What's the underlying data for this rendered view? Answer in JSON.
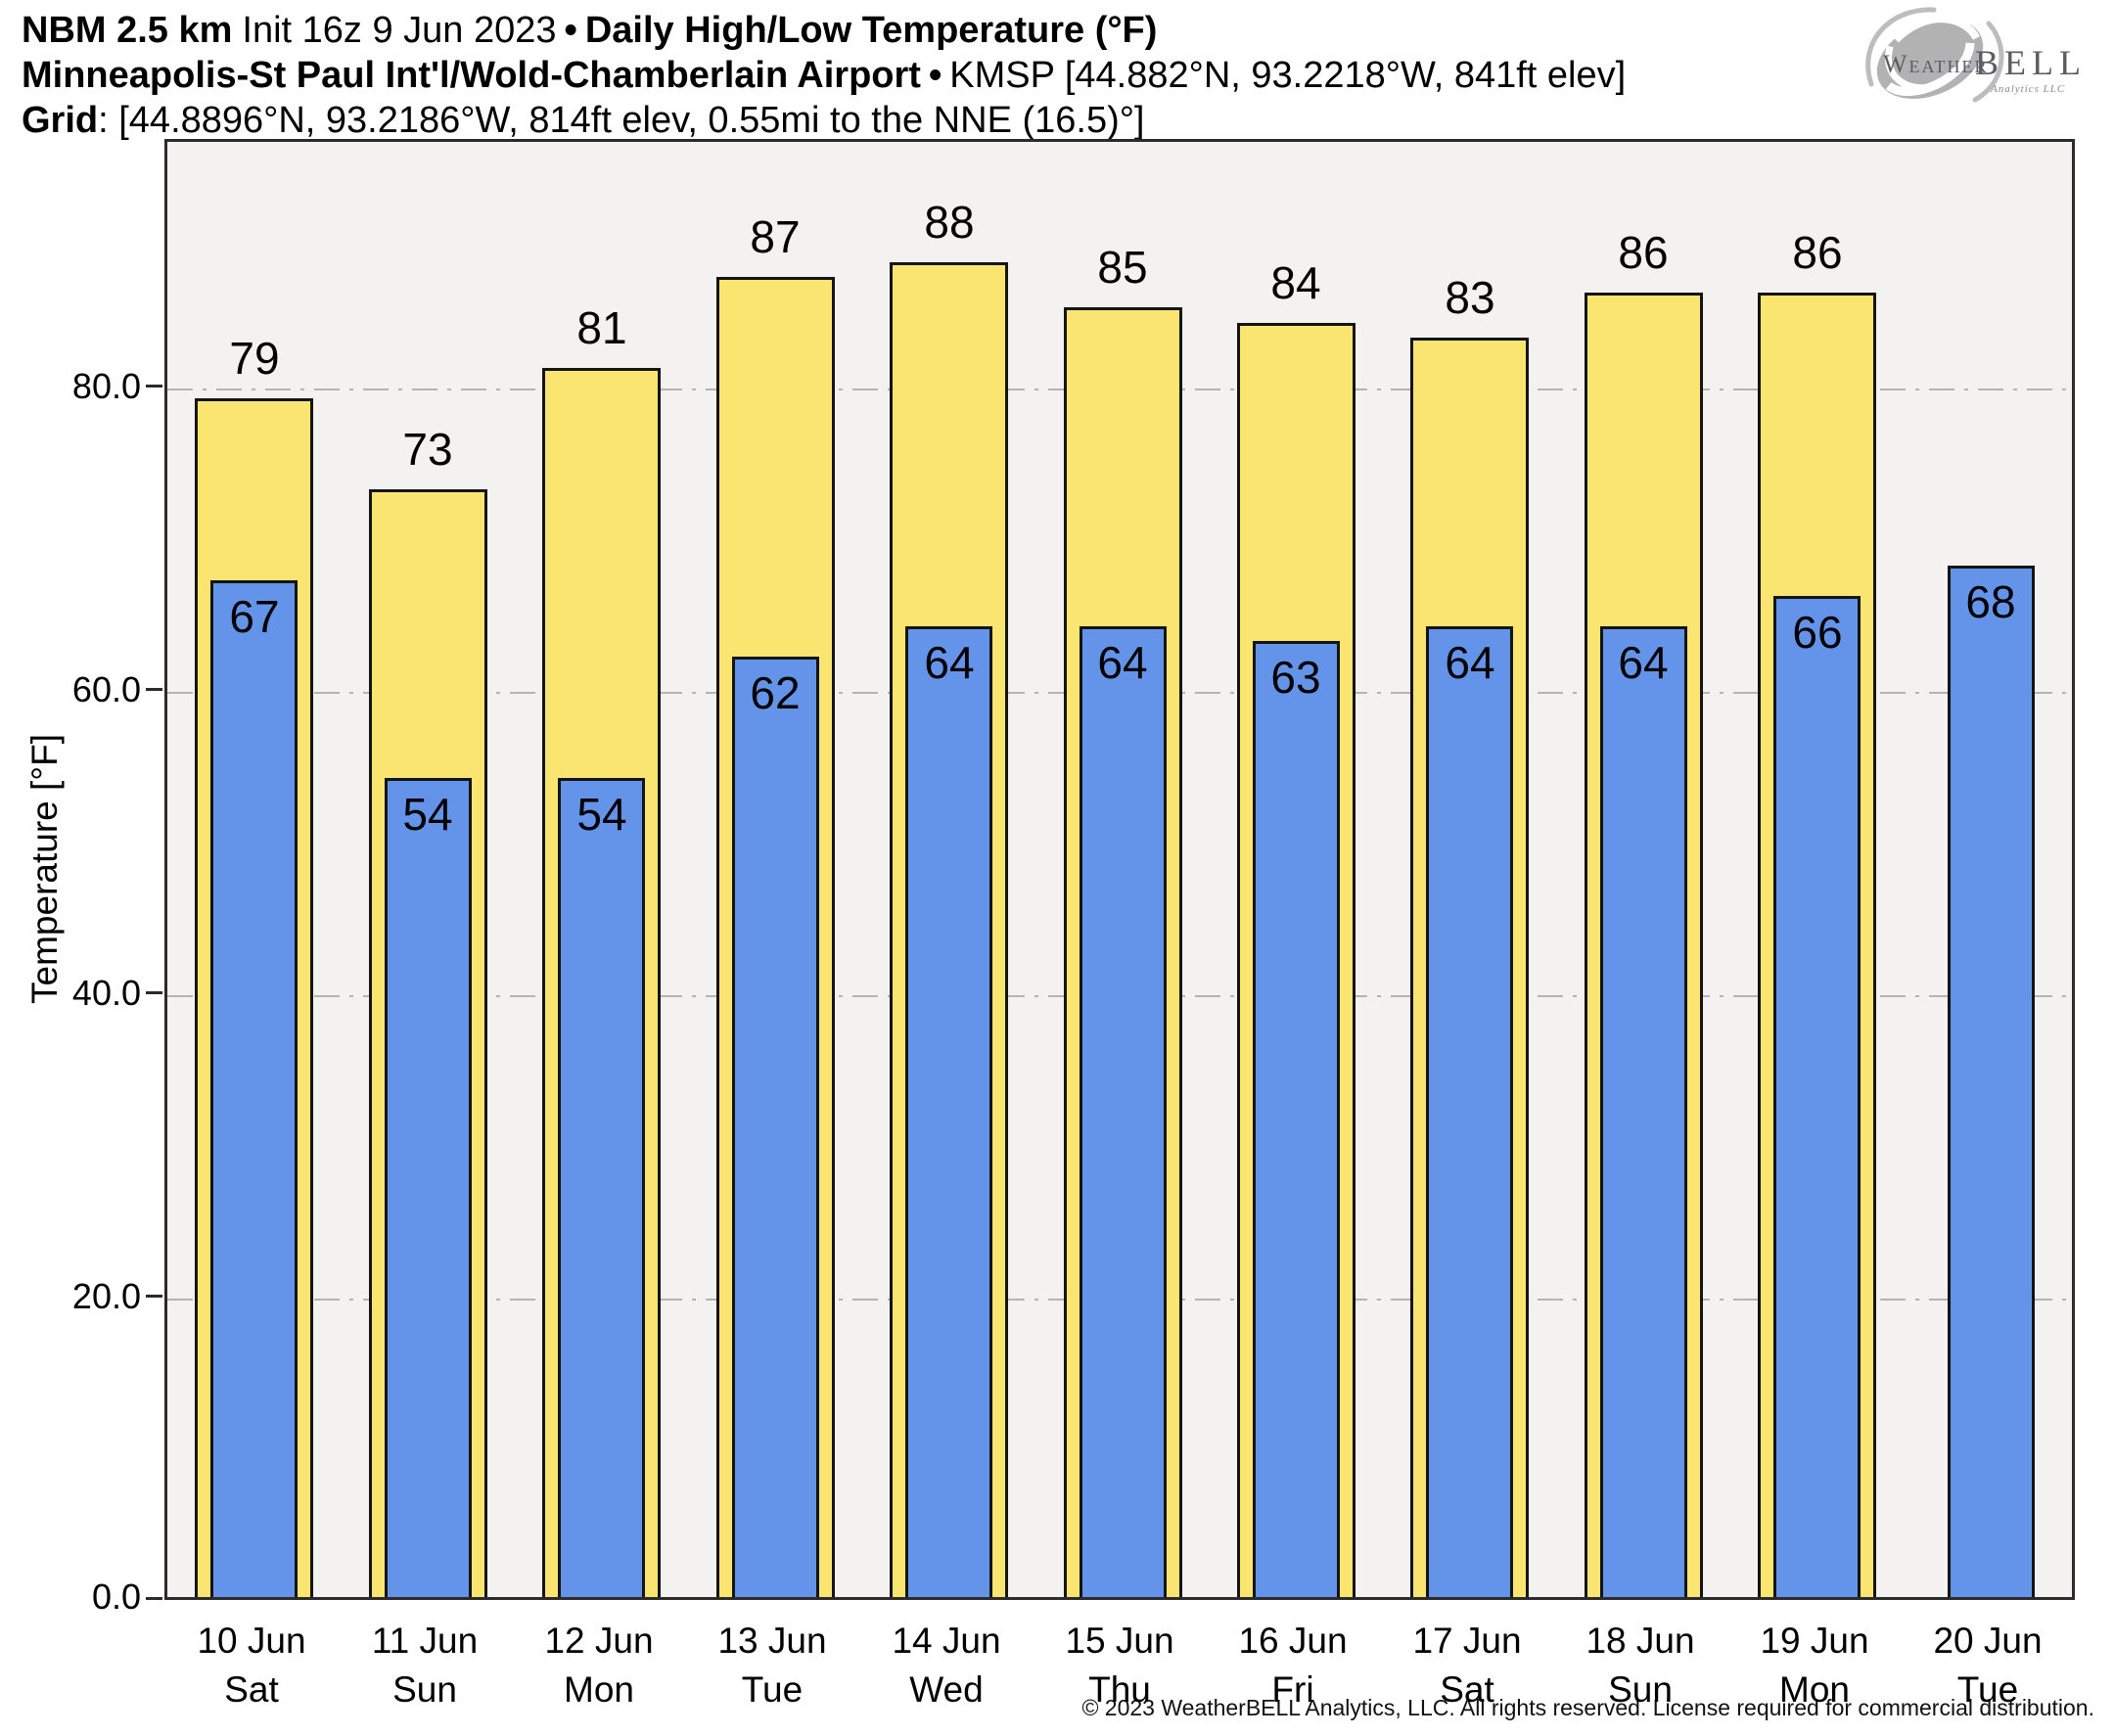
{
  "header": {
    "line1": {
      "model": "NBM 2.5 km",
      "init": "Init 16z 9 Jun 2023",
      "separator": "•",
      "product": "Daily High/Low Temperature (°F)"
    },
    "line2": {
      "station": "Minneapolis-St Paul Int'l/Wold-Chamberlain Airport",
      "separator": "•",
      "details": "KMSP [44.882°N, 93.2218°W, 841ft elev]"
    },
    "line3": {
      "label": "Grid",
      "details": ": [44.8896°N, 93.2186°W, 814ft elev, 0.55mi to the NNE (16.5)°]"
    }
  },
  "logo": {
    "brand_prefix": "Weather",
    "brand_suffix": "BELL",
    "subtitle": "Analytics LLC"
  },
  "chart_data": {
    "type": "bar",
    "title": "Daily High/Low Temperature (°F)",
    "ylabel": "Temperature [°F]",
    "ylim": [
      0,
      96.3
    ],
    "yticks": [
      {
        "value": 0,
        "label": "0.0"
      },
      {
        "value": 20,
        "label": "20.0"
      },
      {
        "value": 40,
        "label": "40.0"
      },
      {
        "value": 60,
        "label": "60.0"
      },
      {
        "value": 80,
        "label": "80.0"
      }
    ],
    "grid": "horizontal dash-dot gridlines at 20, 40, 60, 80; drawn behind bars",
    "legend_position": "none",
    "categories": [
      "10 Jun",
      "11 Jun",
      "12 Jun",
      "13 Jun",
      "14 Jun",
      "15 Jun",
      "16 Jun",
      "17 Jun",
      "18 Jun",
      "19 Jun",
      "20 Jun"
    ],
    "weekdays": [
      "Sat",
      "Sun",
      "Mon",
      "Tue",
      "Wed",
      "Thu",
      "Fri",
      "Sat",
      "Sun",
      "Mon",
      "Tue"
    ],
    "series": [
      {
        "name": "Daily High",
        "color": "#fbe571",
        "values": [
          79,
          73,
          81,
          87,
          88,
          85,
          84,
          83,
          86,
          86,
          null
        ]
      },
      {
        "name": "Daily Low",
        "color": "#6494ea",
        "values": [
          67,
          54,
          54,
          62,
          64,
          64,
          63,
          64,
          64,
          66,
          68
        ]
      }
    ],
    "days": [
      {
        "date": "10 Jun",
        "weekday": "Sat",
        "high": 79,
        "low": 67
      },
      {
        "date": "11 Jun",
        "weekday": "Sun",
        "high": 73,
        "low": 54
      },
      {
        "date": "12 Jun",
        "weekday": "Mon",
        "high": 81,
        "low": 54
      },
      {
        "date": "13 Jun",
        "weekday": "Tue",
        "high": 87,
        "low": 62
      },
      {
        "date": "14 Jun",
        "weekday": "Wed",
        "high": 88,
        "low": 64
      },
      {
        "date": "15 Jun",
        "weekday": "Thu",
        "high": 85,
        "low": 64
      },
      {
        "date": "16 Jun",
        "weekday": "Fri",
        "high": 84,
        "low": 63
      },
      {
        "date": "17 Jun",
        "weekday": "Sat",
        "high": 83,
        "low": 64
      },
      {
        "date": "18 Jun",
        "weekday": "Sun",
        "high": 86,
        "low": 64
      },
      {
        "date": "19 Jun",
        "weekday": "Mon",
        "high": 86,
        "low": 66
      },
      {
        "date": "20 Jun",
        "weekday": "Tue",
        "high": null,
        "low": 68
      }
    ]
  },
  "footer": {
    "copyright": "© 2023 WeatherBELL Analytics, LLC. All rights reserved. License required for commercial distribution."
  },
  "colors": {
    "high_bar": "#fbe571",
    "low_bar": "#6494ea",
    "bar_border": "#141414",
    "plot_bg": "#f3f2f0",
    "grid_line": "#b4b4b4",
    "axis_frame": "#2b2b2b",
    "page_bg": "#ffffff",
    "logo_gray": "#b2b2b2",
    "logo_text": "#5d5b63",
    "text": "#000000"
  }
}
